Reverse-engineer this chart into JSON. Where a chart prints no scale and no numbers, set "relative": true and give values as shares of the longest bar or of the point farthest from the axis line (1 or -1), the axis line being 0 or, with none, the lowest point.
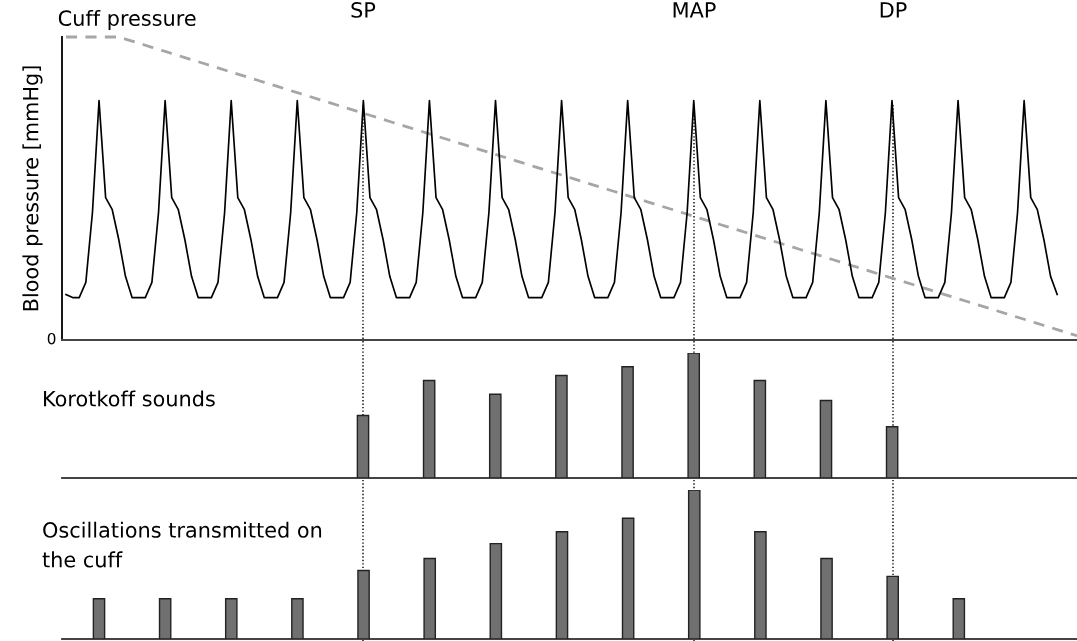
{
  "chart_data": [
    {
      "type": "line",
      "ylabel": "Blood pressure [mmHg]",
      "relative": true,
      "annotations": [
        "0",
        "SP",
        "MAP",
        "DP"
      ],
      "categories": [
        null,
        null,
        null,
        null,
        null,
        null,
        null,
        null,
        null,
        null,
        null,
        null,
        null,
        null,
        null,
        null,
        null,
        null,
        null,
        null,
        null,
        null,
        null,
        null,
        null,
        null,
        null,
        null,
        null,
        null,
        null,
        null,
        null,
        null,
        null,
        null,
        null,
        null,
        null,
        null,
        null,
        null,
        null,
        null,
        null,
        null,
        null,
        null,
        null,
        null,
        null,
        null,
        null,
        null,
        null,
        null,
        null,
        null,
        null,
        null,
        null,
        null,
        null,
        null,
        null,
        null,
        null,
        null,
        null,
        null,
        null,
        null,
        null,
        null,
        null,
        null,
        null,
        null,
        null,
        null,
        null,
        null,
        null,
        null,
        null,
        null,
        null,
        null,
        null,
        null,
        null,
        null,
        null,
        null,
        null,
        null,
        null,
        null,
        null,
        null,
        null,
        null,
        null,
        null,
        null,
        null,
        null,
        null,
        null,
        null,
        null,
        null,
        null,
        null,
        null,
        null,
        null,
        null,
        null,
        null,
        null,
        null,
        null,
        null,
        null,
        null,
        null,
        null,
        null,
        null,
        null,
        null,
        null,
        null,
        null,
        null,
        null,
        null,
        null,
        null,
        null,
        null,
        null,
        null,
        null,
        null,
        null,
        null,
        null,
        null,
        null,
        null,
        null,
        null
      ],
      "series": [
        {
          "color": "#000000",
          "values": [
            0.15,
            0.14,
            0.14,
            0.19,
            0.42,
            0.79,
            0.47,
            0.43,
            0.33,
            0.21,
            0.14,
            0.14,
            0.14,
            0.19,
            0.42,
            0.79,
            0.47,
            0.43,
            0.33,
            0.21,
            0.14,
            0.14,
            0.14,
            0.19,
            0.42,
            0.79,
            0.47,
            0.43,
            0.33,
            0.21,
            0.14,
            0.14,
            0.14,
            0.19,
            0.42,
            0.79,
            0.47,
            0.43,
            0.33,
            0.21,
            0.14,
            0.14,
            0.14,
            0.19,
            0.42,
            0.79,
            0.47,
            0.43,
            0.33,
            0.21,
            0.14,
            0.14,
            0.14,
            0.19,
            0.42,
            0.79,
            0.47,
            0.43,
            0.33,
            0.21,
            0.14,
            0.14,
            0.14,
            0.19,
            0.42,
            0.79,
            0.47,
            0.43,
            0.33,
            0.21,
            0.14,
            0.14,
            0.14,
            0.19,
            0.42,
            0.79,
            0.47,
            0.43,
            0.33,
            0.21,
            0.14,
            0.14,
            0.14,
            0.19,
            0.42,
            0.79,
            0.47,
            0.43,
            0.33,
            0.21,
            0.14,
            0.14,
            0.14,
            0.19,
            0.42,
            0.79,
            0.47,
            0.43,
            0.33,
            0.21,
            0.14,
            0.14,
            0.14,
            0.19,
            0.42,
            0.79,
            0.47,
            0.43,
            0.33,
            0.21,
            0.14,
            0.14,
            0.14,
            0.19,
            0.42,
            0.79,
            0.47,
            0.43,
            0.33,
            0.21,
            0.14,
            0.14,
            0.14,
            0.19,
            0.42,
            0.79,
            0.47,
            0.43,
            0.33,
            0.21,
            0.14,
            0.14,
            0.14,
            0.19,
            0.42,
            0.79,
            0.47,
            0.43,
            0.33,
            0.21,
            0.14,
            0.14,
            0.14,
            0.19,
            0.42,
            0.79,
            0.47,
            0.43,
            0.33,
            0.21,
            0.15,
            null,
            null,
            null
          ]
        },
        {
          "name": "Cuff pressure",
          "color": "#a6a6a6",
          "line_style": "dashed",
          "values": [
            1,
            1,
            1,
            1,
            1,
            1,
            1,
            1,
            1,
            0.9932,
            0.9864,
            0.9796,
            0.9728,
            0.966,
            0.9592,
            0.9524,
            0.9456,
            0.9388,
            0.932,
            0.9252,
            0.9184,
            0.9116,
            0.9048,
            0.898,
            0.8912,
            0.8844,
            0.8776,
            0.8708,
            0.864,
            0.8572,
            0.8504,
            0.8436,
            0.8368,
            0.83,
            0.8232,
            0.8164,
            0.8096,
            0.8028,
            0.796,
            0.7892,
            0.7824,
            0.7756,
            0.7688,
            0.762,
            0.7552,
            0.7484,
            0.7416,
            0.7348,
            0.728,
            0.7212,
            0.7144,
            0.7076,
            0.7008,
            0.694,
            0.6872,
            0.6804,
            0.6736,
            0.6668,
            0.66,
            0.6532,
            0.6464,
            0.6396,
            0.6328,
            0.626,
            0.6192,
            0.6124,
            0.6056,
            0.5988,
            0.592,
            0.5852,
            0.5784,
            0.5716,
            0.5648,
            0.558,
            0.5512,
            0.5444,
            0.5376,
            0.5308,
            0.524,
            0.5172,
            0.5104,
            0.5036,
            0.4968,
            0.49,
            0.4832,
            0.4764,
            0.4696,
            0.4628,
            0.456,
            0.4492,
            0.4424,
            0.4356,
            0.4288,
            0.422,
            0.4152,
            0.4084,
            0.4016,
            0.3948,
            0.388,
            0.3812,
            0.3744,
            0.3676,
            0.3608,
            0.354,
            0.3472,
            0.3404,
            0.3336,
            0.3268,
            0.32,
            0.3132,
            0.3064,
            0.2996,
            0.2928,
            0.286,
            0.2792,
            0.2724,
            0.2656,
            0.2588,
            0.252,
            0.2452,
            0.2384,
            0.2316,
            0.2248,
            0.218,
            0.2112,
            0.2044,
            0.1976,
            0.1908,
            0.184,
            0.1772,
            0.1704,
            0.1636,
            0.1568,
            0.15,
            0.1432,
            0.1364,
            0.1296,
            0.1228,
            0.116,
            0.1092,
            0.1024,
            0.0956,
            0.0888,
            0.082,
            0.0752,
            0.0684,
            0.0616,
            0.0548,
            0.048,
            0.0412,
            0.0344,
            0.0276,
            0.0208,
            0.014
          ]
        }
      ]
    },
    {
      "type": "bar",
      "title": "Korotkoff sounds",
      "relative": true,
      "color": "#707070",
      "categories": [
        null,
        null,
        null,
        null,
        null,
        null,
        null,
        null,
        null
      ],
      "values": [
        0.5,
        0.78,
        0.67,
        0.82,
        0.89,
        1,
        0.78,
        0.62,
        0.41
      ]
    },
    {
      "type": "bar",
      "title": "Oscillations transmitted on\nthe cuff",
      "relative": true,
      "color": "#707070",
      "categories": [
        null,
        null,
        null,
        null,
        null,
        null,
        null,
        null,
        null,
        null,
        null,
        null,
        null,
        null
      ],
      "values": [
        0.27,
        0.27,
        0.27,
        0.27,
        0.46,
        0.54,
        0.64,
        0.72,
        0.81,
        1,
        0.72,
        0.54,
        0.42,
        0.27
      ]
    }
  ]
}
